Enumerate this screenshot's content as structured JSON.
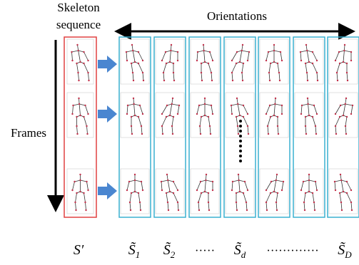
{
  "header": {
    "skeleton_label": [
      "Skeleton",
      "sequence"
    ],
    "orientations": "Orientations",
    "frames": "Frames"
  },
  "labels": [
    {
      "base": "S′",
      "sub": null
    },
    {
      "base": "S̃",
      "sub": "1"
    },
    {
      "base": "S̃",
      "sub": "2"
    },
    {
      "base": "·····",
      "sub": null
    },
    {
      "base": "S̃",
      "sub": "d"
    },
    {
      "base": "·············",
      "sub": null
    },
    {
      "base": "S̃",
      "sub": "D"
    }
  ]
}
